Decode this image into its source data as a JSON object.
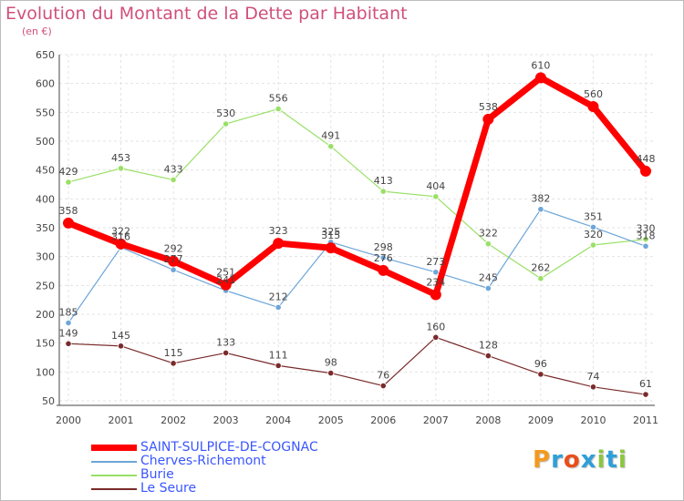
{
  "title": "Evolution du Montant de la Dette par Habitant",
  "subtitle": "(en €)",
  "logo": {
    "text": "Proxiti",
    "colors": [
      "#f39a1e",
      "#2f9fd8",
      "#e94e1b",
      "#2f9fd8",
      "#8cc63f",
      "#2f9fd8",
      "#8cc63f"
    ]
  },
  "chart_data": {
    "type": "line",
    "x": [
      "2000",
      "2001",
      "2002",
      "2003",
      "2004",
      "2005",
      "2006",
      "2007",
      "2008",
      "2009",
      "2010",
      "2011"
    ],
    "ylim": [
      50,
      650
    ],
    "yticks": [
      "50",
      "100",
      "150",
      "200",
      "250",
      "300",
      "350",
      "400",
      "450",
      "500",
      "550",
      "600",
      "650"
    ],
    "grid": true,
    "legend_placement": "bottom-left",
    "series": [
      {
        "name": "SAINT-SULPICE-DE-COGNAC",
        "color": "#ff0000",
        "values": [
          358,
          322,
          292,
          251,
          323,
          315,
          276,
          234,
          538,
          610,
          560,
          448
        ]
      },
      {
        "name": "Cherves-Richemont",
        "color": "#6ea6d8",
        "values": [
          185,
          316,
          277,
          241,
          212,
          325,
          298,
          273,
          245,
          382,
          351,
          318
        ]
      },
      {
        "name": "Burie",
        "color": "#99e066",
        "values": [
          429,
          453,
          433,
          530,
          556,
          491,
          413,
          404,
          322,
          262,
          320,
          330
        ]
      },
      {
        "name": "Le Seure",
        "color": "#7a2a2a",
        "values": [
          149,
          145,
          115,
          133,
          111,
          98,
          76,
          160,
          128,
          96,
          74,
          61
        ]
      }
    ]
  }
}
